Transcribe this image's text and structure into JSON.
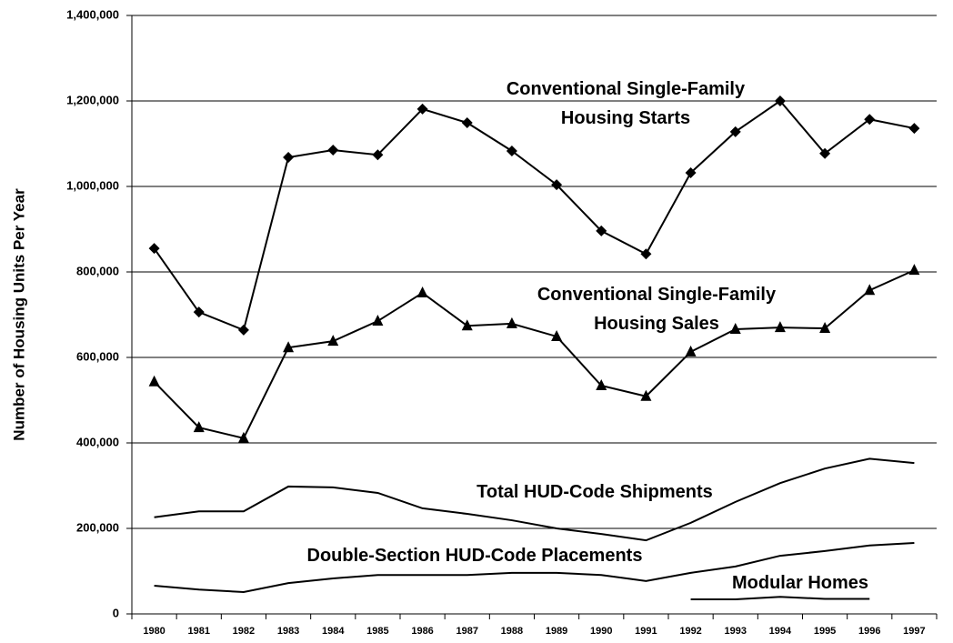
{
  "chart_data": {
    "type": "line",
    "y_label": "Number of Housing Units Per Year",
    "categories": [
      "1980",
      "1981",
      "1982",
      "1983",
      "1984",
      "1985",
      "1986",
      "1987",
      "1988",
      "1989",
      "1990",
      "1991",
      "1992",
      "1993",
      "1994",
      "1995",
      "1996",
      "1997"
    ],
    "series": [
      {
        "name": "Conventional Single-Family Housing Starts",
        "color": "#000000",
        "marker": "diamond",
        "values": [
          855000,
          706000,
          664000,
          1068000,
          1085000,
          1074000,
          1181000,
          1149000,
          1083000,
          1004000,
          896000,
          842000,
          1032000,
          1128000,
          1200000,
          1077000,
          1157000,
          1136000
        ]
      },
      {
        "name": "Conventional Single-Family Housing Sales",
        "color": "#000000",
        "marker": "triangle",
        "values": [
          543000,
          436000,
          411000,
          623000,
          638000,
          685000,
          751000,
          674000,
          679000,
          649000,
          534000,
          509000,
          613000,
          666000,
          670000,
          668000,
          757000,
          804000
        ]
      },
      {
        "name": "Total HUD-Code Shipments",
        "color": "#000000",
        "values": [
          226000,
          240000,
          240000,
          298000,
          296000,
          283000,
          247000,
          234000,
          219000,
          200000,
          187000,
          172000,
          213000,
          262000,
          306000,
          340000,
          363000,
          353000
        ]
      },
      {
        "name": "Double-Section HUD-Code Placements",
        "color": "#000000",
        "values": [
          66000,
          57000,
          51000,
          72000,
          83000,
          91000,
          91000,
          91000,
          96000,
          96000,
          91000,
          77000,
          96000,
          111000,
          136000,
          147000,
          160000,
          166000
        ]
      },
      {
        "name": "Modular Homes",
        "color": "#000000",
        "values": [
          null,
          null,
          null,
          null,
          null,
          null,
          null,
          null,
          null,
          null,
          null,
          null,
          34000,
          34000,
          40000,
          35000,
          35000,
          null
        ]
      }
    ],
    "ylim": [
      0,
      1400000
    ],
    "yticks": [
      0,
      {
        "value": 200000,
        "label": "200,000"
      },
      {
        "value": 400000,
        "label": "400,000"
      },
      {
        "value": 600000,
        "label": "600,000"
      },
      {
        "value": 800000,
        "label": "800,000"
      },
      {
        "value": 1000000,
        "label": "1,000,000"
      },
      {
        "value": 1200000,
        "label": "1,200,000"
      },
      {
        "value": 1400000,
        "label": "1,400,000"
      }
    ],
    "grid": true
  }
}
